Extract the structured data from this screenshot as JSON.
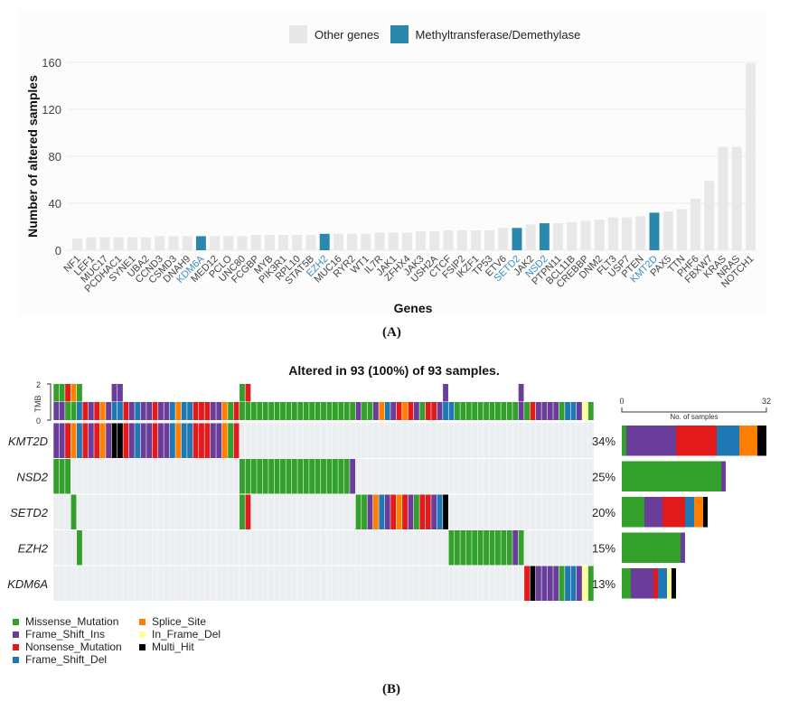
{
  "captions": {
    "a": "(A)",
    "b": "(B)"
  },
  "chart_data": [
    {
      "type": "bar",
      "title": "",
      "xlabel": "Genes",
      "ylabel": "Number of altered samples",
      "ylim": [
        0,
        160
      ],
      "yticks": [
        0,
        40,
        80,
        120,
        160
      ],
      "grid": true,
      "legend": {
        "position": "top-center",
        "entries": [
          {
            "label": "Other genes",
            "color": "#e8e8e8"
          },
          {
            "label": "Methyltransferase/Demethylase",
            "color": "#2b87ab"
          }
        ]
      },
      "highlight_color": "#2b87ab",
      "other_color": "#e8e8e8",
      "highlight_label_color": "#3a8fbf",
      "categories": [
        "NF1",
        "LEF1",
        "MUC17",
        "PCDHAC1",
        "SYNE1",
        "UBA2",
        "CCND3",
        "CSMD3",
        "DNAH9",
        "KDM6A",
        "MED12",
        "PCLO",
        "UNC80",
        "FCGBP",
        "MYB",
        "PIK3R1",
        "RPL10",
        "STAT5B",
        "EZH2",
        "MUC16",
        "RYR2",
        "WT1",
        "IL7R",
        "JAK1",
        "ZFHX4",
        "JAK3",
        "USH2A",
        "CTCF",
        "FSIP2",
        "IKZF1",
        "TP53",
        "ETV6",
        "SETD2",
        "JAK2",
        "NSD2",
        "PTPN11",
        "BCL11B",
        "CREBBP",
        "DNM2",
        "FLT3",
        "USP7",
        "PTEN",
        "KMT2D",
        "PAX5",
        "TTN",
        "PHF6",
        "FBXW7",
        "KRAS",
        "NRAS",
        "NOTCH1"
      ],
      "values": [
        10,
        11,
        11,
        11,
        11,
        11,
        12,
        12,
        12,
        12,
        12,
        12,
        12,
        13,
        13,
        13,
        13,
        13,
        14,
        14,
        14,
        14,
        15,
        15,
        15,
        16,
        16,
        17,
        17,
        17,
        17,
        19,
        19,
        22,
        23,
        23,
        24,
        25,
        26,
        28,
        28,
        29,
        32,
        33,
        35,
        44,
        59,
        88,
        88,
        159
      ],
      "highlighted": [
        "KDM6A",
        "EZH2",
        "SETD2",
        "NSD2",
        "KMT2D"
      ]
    },
    {
      "type": "heatmap",
      "title": "Altered in 93 (100%) of 93 samples.",
      "n_samples": 93,
      "tmb_label": "TMB",
      "tmb_ticks": [
        0,
        2
      ],
      "side_axis": {
        "label": "No. of samples",
        "min": 0,
        "max": 32
      },
      "background_color": "#eceff1",
      "legend": [
        {
          "key": "G",
          "label": "Missense_Mutation",
          "color": "#33a02c"
        },
        {
          "key": "P",
          "label": "Frame_Shift_Ins",
          "color": "#6a3d9a"
        },
        {
          "key": "R",
          "label": "Nonsense_Mutation",
          "color": "#e31a1c"
        },
        {
          "key": "B",
          "label": "Frame_Shift_Del",
          "color": "#1f78b4"
        },
        {
          "key": "O",
          "label": "Splice_Site",
          "color": "#ff7f00"
        },
        {
          "key": "Y",
          "label": "In_Frame_Del",
          "color": "#ffff99"
        },
        {
          "key": "K",
          "label": "Multi_Hit",
          "color": "#000000"
        }
      ],
      "genes": [
        {
          "name": "KMT2D",
          "pct": "34%",
          "cells": "PPROBRPROPKKRPBPPRPPBOBBRRRPPOGR.............................................................",
          "counts": {
            "G": 1,
            "P": 11,
            "R": 9,
            "B": 5,
            "O": 4,
            "Y": 0,
            "K": 2
          }
        },
        {
          "name": "NSD2",
          "pct": "25%",
          "cells": "GGG.............................GGGGGGGGGGGGGGGGGGGP.........................................",
          "counts": {
            "G": 22,
            "P": 1,
            "R": 0,
            "B": 0,
            "O": 0,
            "Y": 0,
            "K": 0
          }
        },
        {
          "name": "SETD2",
          "pct": "20%",
          "cells": "...G............................GR..................GGPOBPRORPGRRPBK.........................",
          "counts": {
            "G": 5,
            "P": 4,
            "R": 5,
            "B": 2,
            "O": 2,
            "Y": 0,
            "K": 1
          }
        },
        {
          "name": "EZH2",
          "pct": "15%",
          "cells": "....G...............................................................GGGGGGGGGGGPG............",
          "counts": {
            "G": 13,
            "P": 1,
            "R": 0,
            "B": 0,
            "O": 0,
            "Y": 0,
            "K": 0
          }
        },
        {
          "name": "KDM6A",
          "pct": "13%",
          "cells": ".................................................................................RKPPPPGBBPYG",
          "counts": {
            "G": 2,
            "P": 5,
            "R": 1,
            "B": 2,
            "O": 0,
            "Y": 1,
            "K": 1
          }
        }
      ],
      "tmb_bottom": "PPGGBRPROPBBRPBPPRPPBOBBRRRPPOGRGGGGGGGGGGGGGGGGGGGGPGGPOBPRORPGRRPBBGGGGGGGGGGGPGRPPPPGBBPYG",
      "tmb_top": {
        "0": "G",
        "1": "G",
        "2": "R",
        "3": "O",
        "4": "G",
        "10": "P",
        "11": "P",
        "32": "G",
        "33": "R",
        "67": "P",
        "80": "P"
      }
    }
  ]
}
